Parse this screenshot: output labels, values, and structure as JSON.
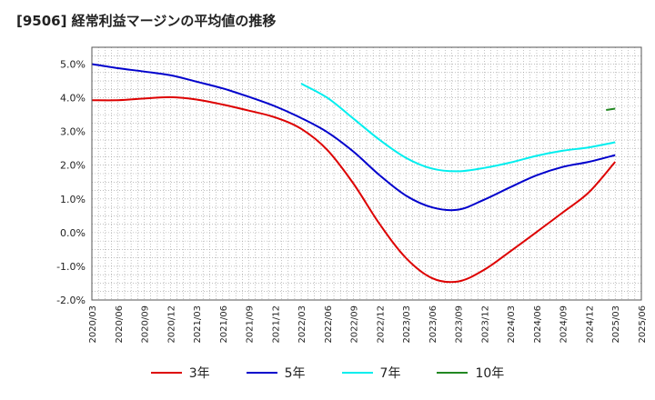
{
  "chart_data": {
    "type": "line",
    "title": "[9506]  経常利益マージンの平均値の推移",
    "ylim": [
      -2.0,
      5.5
    ],
    "yticks": [
      "-2.0%",
      "-1.0%",
      "0.0%",
      "1.0%",
      "2.0%",
      "3.0%",
      "4.0%",
      "5.0%"
    ],
    "ytick_values": [
      -2,
      -1,
      0,
      1,
      2,
      3,
      4,
      5
    ],
    "x": [
      "2020/03",
      "2020/06",
      "2020/09",
      "2020/12",
      "2021/03",
      "2021/06",
      "2021/09",
      "2021/12",
      "2022/03",
      "2022/06",
      "2022/09",
      "2022/12",
      "2023/03",
      "2023/06",
      "2023/09",
      "2023/12",
      "2024/03",
      "2024/06",
      "2024/09",
      "2024/12",
      "2025/03",
      "2025/06"
    ],
    "grid": true,
    "legend_position": "bottom",
    "series": [
      {
        "name": "3年",
        "color": "#dd0000",
        "values": [
          3.93,
          3.93,
          3.98,
          4.02,
          3.95,
          3.8,
          3.62,
          3.42,
          3.08,
          2.45,
          1.45,
          0.25,
          -0.75,
          -1.35,
          -1.45,
          -1.1,
          -0.55,
          0.02,
          0.6,
          1.2,
          2.1,
          null
        ]
      },
      {
        "name": "5年",
        "color": "#0000cc",
        "values": [
          5.0,
          4.88,
          4.78,
          4.67,
          4.48,
          4.28,
          4.03,
          3.75,
          3.4,
          2.98,
          2.4,
          1.7,
          1.1,
          0.75,
          0.68,
          0.98,
          1.35,
          1.7,
          1.95,
          2.1,
          2.3,
          null
        ]
      },
      {
        "name": "7年",
        "color": "#00eeee",
        "values": [
          null,
          null,
          null,
          null,
          null,
          null,
          null,
          null,
          4.42,
          4.0,
          3.38,
          2.75,
          2.22,
          1.9,
          1.82,
          1.92,
          2.08,
          2.28,
          2.43,
          2.53,
          2.68,
          null
        ]
      },
      {
        "name": "10年",
        "color": "#228822",
        "values": [
          null,
          null,
          null,
          null,
          null,
          null,
          null,
          null,
          null,
          null,
          null,
          null,
          null,
          null,
          null,
          null,
          null,
          null,
          null,
          null,
          3.68,
          null
        ]
      }
    ]
  }
}
